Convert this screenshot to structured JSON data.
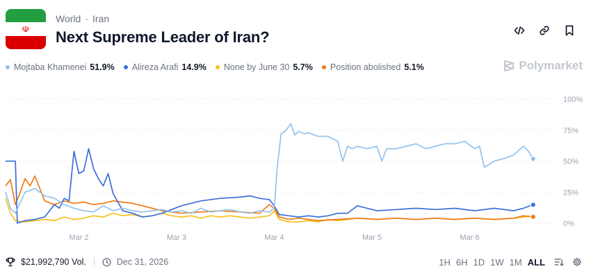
{
  "header": {
    "breadcrumb": [
      "World",
      "Iran"
    ],
    "title": "Next Supreme Leader of Iran?",
    "actions": [
      {
        "name": "embed-button",
        "icon": "code-icon"
      },
      {
        "name": "copy-link-button",
        "icon": "link-icon"
      },
      {
        "name": "bookmark-button",
        "icon": "bookmark-icon"
      }
    ]
  },
  "flag": {
    "icon": "iran-flag-icon",
    "emblem": "☫"
  },
  "brand": {
    "name": "Polymarket"
  },
  "legend": [
    {
      "name": "Mojtaba Khamenei",
      "value": "51.9%",
      "color": "#93c2ec"
    },
    {
      "name": "Alireza Arafi",
      "value": "14.9%",
      "color": "#3b6fd9"
    },
    {
      "name": "None by June 30",
      "value": "5.7%",
      "color": "#f3c21a"
    },
    {
      "name": "Position abolished",
      "value": "5.1%",
      "color": "#f07a14"
    }
  ],
  "footer": {
    "volume": "$21,992,790 Vol.",
    "end_date": "Dec 31, 2026",
    "ranges": [
      "1H",
      "6H",
      "1D",
      "1W",
      "1M",
      "ALL"
    ],
    "active_range": "ALL"
  },
  "chart_data": {
    "type": "line",
    "title": "Next Supreme Leader of Iran?",
    "x_ticks": [
      "Mar 2",
      "Mar 3",
      "Mar 4",
      "Mar 5",
      "Mar 6"
    ],
    "x_tick_positions": [
      1.75,
      2.75,
      3.75,
      4.75,
      5.75
    ],
    "xlim": [
      1.0,
      6.6
    ],
    "ylim": [
      0,
      100
    ],
    "y_ticks": [
      0,
      25,
      50,
      75,
      100
    ],
    "y_tick_labels": [
      "0%",
      "25%",
      "50%",
      "75%",
      "100%"
    ],
    "series": [
      {
        "name": "Mojtaba Khamenei",
        "color": "#93c2ec",
        "x": [
          1.0,
          1.05,
          1.1,
          1.2,
          1.3,
          1.4,
          1.5,
          1.6,
          1.7,
          1.8,
          1.9,
          2.0,
          2.1,
          2.2,
          2.3,
          2.4,
          2.5,
          2.6,
          2.7,
          2.8,
          2.9,
          3.0,
          3.1,
          3.2,
          3.3,
          3.4,
          3.5,
          3.6,
          3.7,
          3.75,
          3.78,
          3.82,
          3.86,
          3.92,
          3.96,
          4.0,
          4.06,
          4.1,
          4.16,
          4.2,
          4.3,
          4.4,
          4.45,
          4.5,
          4.55,
          4.6,
          4.7,
          4.8,
          4.85,
          4.9,
          5.0,
          5.1,
          5.2,
          5.3,
          5.4,
          5.5,
          5.6,
          5.7,
          5.8,
          5.85,
          5.9,
          6.0,
          6.1,
          6.2,
          6.3,
          6.35,
          6.4
        ],
        "y": [
          25,
          12,
          8,
          25,
          28,
          22,
          20,
          15,
          12,
          10,
          9,
          14,
          10,
          12,
          10,
          9,
          10,
          11,
          9,
          10,
          8,
          12,
          9,
          10,
          11,
          9,
          8,
          10,
          9,
          12,
          45,
          72,
          74,
          80,
          71,
          74,
          72,
          73,
          71,
          70,
          70,
          66,
          50,
          62,
          60,
          62,
          60,
          62,
          50,
          60,
          60,
          62,
          64,
          60,
          62,
          64,
          64,
          66,
          60,
          62,
          45,
          50,
          52,
          55,
          62,
          58,
          51.9
        ]
      },
      {
        "name": "Alireza Arafi",
        "color": "#3b6fd9",
        "x": [
          1.0,
          1.1,
          1.12,
          1.2,
          1.3,
          1.4,
          1.5,
          1.55,
          1.6,
          1.65,
          1.7,
          1.75,
          1.8,
          1.85,
          1.9,
          1.95,
          2.0,
          2.05,
          2.1,
          2.2,
          2.3,
          2.4,
          2.5,
          2.6,
          2.8,
          3.0,
          3.2,
          3.4,
          3.5,
          3.6,
          3.7,
          3.75,
          3.8,
          3.9,
          4.0,
          4.1,
          4.2,
          4.3,
          4.4,
          4.5,
          4.6,
          4.8,
          5.0,
          5.2,
          5.4,
          5.6,
          5.8,
          6.0,
          6.2,
          6.3,
          6.4
        ],
        "y": [
          50,
          50,
          0,
          2,
          3,
          5,
          15,
          12,
          20,
          18,
          58,
          40,
          42,
          60,
          44,
          36,
          30,
          40,
          24,
          10,
          8,
          5,
          6,
          8,
          14,
          18,
          20,
          21,
          22,
          20,
          19,
          14,
          7,
          6,
          5,
          6,
          5,
          6,
          8,
          8,
          14,
          10,
          11,
          12,
          11,
          12,
          10,
          12,
          10,
          12,
          14.9
        ]
      },
      {
        "name": "None by June 30",
        "color": "#f3c21a",
        "x": [
          1.0,
          1.05,
          1.1,
          1.2,
          1.3,
          1.4,
          1.5,
          1.6,
          1.7,
          1.8,
          1.9,
          2.0,
          2.1,
          2.2,
          2.3,
          2.4,
          2.5,
          2.6,
          2.7,
          2.8,
          2.9,
          3.0,
          3.1,
          3.2,
          3.3,
          3.4,
          3.5,
          3.6,
          3.7,
          3.75,
          3.8,
          3.9,
          4.0,
          4.1,
          4.2,
          4.3,
          4.4,
          4.5,
          4.6,
          4.8,
          5.0,
          5.2,
          5.4,
          5.6,
          5.8,
          6.0,
          6.2,
          6.3,
          6.4
        ],
        "y": [
          20,
          8,
          2,
          1,
          2,
          3,
          2,
          5,
          3,
          4,
          6,
          5,
          8,
          6,
          7,
          5,
          6,
          8,
          6,
          5,
          6,
          4,
          6,
          5,
          6,
          5,
          4,
          5,
          6,
          10,
          3,
          1,
          1,
          2,
          1,
          3,
          2,
          3,
          4,
          3,
          4,
          3,
          4,
          3,
          4,
          3,
          4,
          5,
          5.7
        ]
      },
      {
        "name": "Position abolished",
        "color": "#f07a14",
        "x": [
          1.0,
          1.05,
          1.1,
          1.15,
          1.2,
          1.25,
          1.3,
          1.4,
          1.5,
          1.6,
          1.7,
          1.8,
          1.9,
          2.0,
          2.1,
          2.2,
          2.3,
          2.4,
          2.5,
          2.6,
          2.8,
          3.0,
          3.2,
          3.4,
          3.6,
          3.7,
          3.75,
          3.8,
          3.9,
          4.0,
          4.1,
          4.2,
          4.4,
          4.6,
          4.8,
          5.0,
          5.2,
          5.4,
          5.6,
          5.8,
          6.0,
          6.2,
          6.3,
          6.4
        ],
        "y": [
          30,
          35,
          15,
          25,
          36,
          30,
          38,
          18,
          15,
          18,
          16,
          17,
          15,
          16,
          18,
          17,
          16,
          14,
          12,
          10,
          8,
          9,
          10,
          9,
          8,
          15,
          12,
          5,
          3,
          4,
          3,
          2,
          3,
          4,
          3,
          4,
          3,
          4,
          3,
          4,
          3,
          4,
          6,
          5.1
        ]
      }
    ]
  }
}
